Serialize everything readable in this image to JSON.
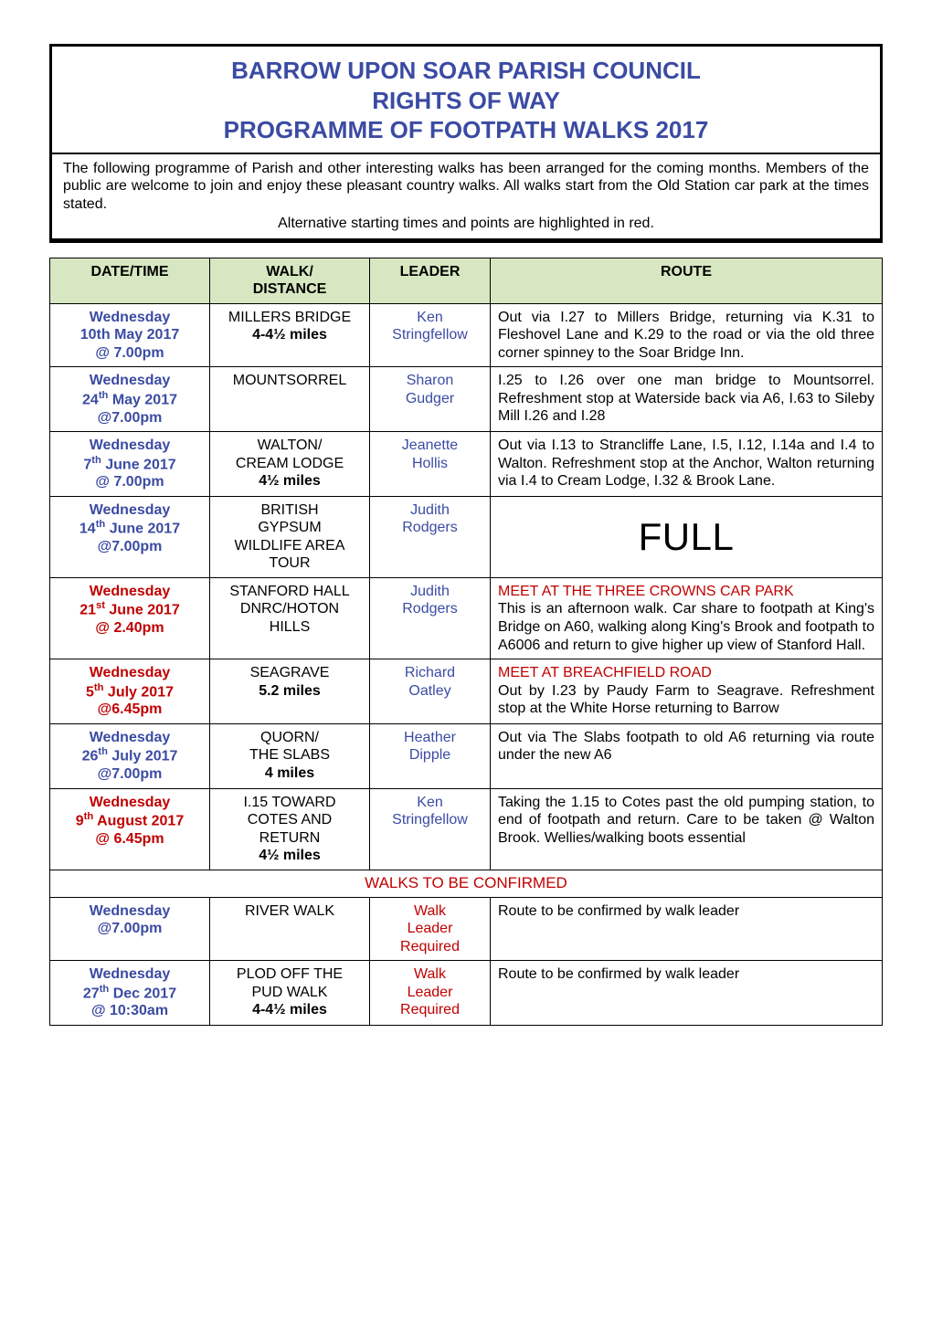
{
  "colors": {
    "blue": "#3b4ba3",
    "red": "#c00000",
    "header_bg": "#d7e7c1",
    "border": "#000000",
    "text": "#000000",
    "bg": "#ffffff"
  },
  "title": {
    "line1": "BARROW UPON SOAR PARISH COUNCIL",
    "line2": "RIGHTS OF WAY",
    "line3": "PROGRAMME OF FOOTPATH WALKS 2017"
  },
  "intro": {
    "para": "The following programme of Parish and other interesting walks has been arranged for the coming months. Members of the public are welcome to join and enjoy these pleasant country walks. All walks start from the Old Station car park at the times stated.",
    "alt": "Alternative starting times and points are highlighted in red."
  },
  "headers": {
    "date": "DATE/TIME",
    "walk_line1": "WALK/",
    "walk_line2": "DISTANCE",
    "leader": "LEADER",
    "route": "ROUTE"
  },
  "section_label": "WALKS TO BE CONFIRMED",
  "walks": [
    {
      "date_day": "Wednesday",
      "date_date": "10th May 2017",
      "date_time": "@ 7.00pm",
      "date_red": false,
      "walk_name": "MILLERS BRIDGE",
      "walk_dist": "4-4½ miles",
      "leader": "Ken Stringfellow",
      "leader_needed": false,
      "route_highlight": "",
      "route": "Out via I.27 to Millers Bridge, returning via K.31 to Fleshovel Lane and K.29 to the road or via the old three corner spinney to the Soar Bridge Inn.",
      "full": false
    },
    {
      "date_day": "Wednesday",
      "date_date_html": "24<sup>th</sup> May 2017",
      "date_time": "@7.00pm",
      "date_red": false,
      "walk_name": "MOUNTSORREL",
      "walk_dist": "",
      "leader": "Sharon Gudger",
      "leader_needed": false,
      "route_highlight": "",
      "route": "I.25 to I.26 over one man bridge to Mountsorrel. Refreshment stop at Waterside back via A6, I.63 to Sileby Mill I.26 and I.28",
      "full": false
    },
    {
      "date_day": "Wednesday",
      "date_date_html": "7<sup>th</sup> June 2017",
      "date_time": "@ 7.00pm",
      "date_red": false,
      "walk_name": "WALTON/\nCREAM LODGE",
      "walk_dist": "4½ miles",
      "leader": "Jeanette Hollis",
      "leader_needed": false,
      "route_highlight": "",
      "route": "Out via I.13 to Strancliffe Lane, I.5, I.12, I.14a and I.4 to Walton. Refreshment stop at the Anchor, Walton returning via I.4 to Cream Lodge, I.32 & Brook Lane.",
      "full": false
    },
    {
      "date_day": "Wednesday",
      "date_date_html": "14<sup>th</sup> June 2017",
      "date_time": "@7.00pm",
      "date_red": false,
      "walk_name": "BRITISH\nGYPSUM\nWILDLIFE AREA\nTOUR",
      "walk_dist": "",
      "leader": "Judith Rodgers",
      "leader_needed": false,
      "route_highlight": "",
      "route": "FULL",
      "full": true
    },
    {
      "date_day": "Wednesday",
      "date_date_html": "21<sup>st</sup> June 2017",
      "date_time": "@ 2.40pm",
      "date_red": true,
      "walk_name": "STANFORD HALL\nDNRC/HOTON\nHILLS",
      "walk_dist": "",
      "leader": "Judith Rodgers",
      "leader_needed": false,
      "route_highlight": "MEET AT THE THREE CROWNS CAR PARK",
      "route": "This is an afternoon walk. Car share to footpath at King's Bridge on A60, walking along King's Brook and footpath to A6006 and return to give higher up view of Stanford Hall.",
      "full": false
    },
    {
      "date_day": "Wednesday",
      "date_date_html": "5<sup>th</sup> July 2017",
      "date_time": "@6.45pm",
      "date_red": true,
      "walk_name": "SEAGRAVE",
      "walk_dist": "5.2 miles",
      "leader": "Richard Oatley",
      "leader_needed": false,
      "route_highlight": "MEET AT BREACHFIELD ROAD",
      "route": "Out by I.23 by Paudy Farm to Seagrave. Refreshment stop at the White Horse returning to Barrow",
      "full": false
    },
    {
      "date_day": "Wednesday",
      "date_date_html": "26<sup>th</sup> July 2017",
      "date_time": "@7.00pm",
      "date_red": false,
      "walk_name": "QUORN/\nTHE SLABS",
      "walk_dist": "4 miles",
      "leader": "Heather Dipple",
      "leader_needed": false,
      "route_highlight": "",
      "route": "Out via The Slabs footpath to old A6 returning via route under the new A6",
      "full": false
    },
    {
      "date_day": "Wednesday",
      "date_date_html": "9<sup>th</sup> August 2017",
      "date_time": "@ 6.45pm",
      "date_red": true,
      "walk_name": "I.15 TOWARD\nCOTES AND\nRETURN",
      "walk_dist": "4½ miles",
      "leader": "Ken Stringfellow",
      "leader_needed": false,
      "route_highlight": "",
      "route": "Taking the 1.15 to Cotes past the old pumping station, to end of footpath and return. Care to be taken @ Walton Brook. Wellies/walking boots essential",
      "full": false
    }
  ],
  "tbc": [
    {
      "date_day": "Wednesday",
      "date_date_html": "",
      "date_time": "@7.00pm",
      "date_red": false,
      "walk_name": "RIVER WALK",
      "walk_dist": "",
      "leader": "Walk Leader Required",
      "leader_needed": true,
      "route": "Route to be confirmed by walk leader"
    },
    {
      "date_day": "Wednesday",
      "date_date_html": "27<sup>th</sup> Dec 2017",
      "date_time": "@ 10:30am",
      "date_red": false,
      "walk_name": "PLOD OFF THE\nPUD WALK",
      "walk_dist": "4-4½ miles",
      "leader": "Walk Leader Required",
      "leader_needed": true,
      "route": "Route to be confirmed by walk leader"
    }
  ]
}
